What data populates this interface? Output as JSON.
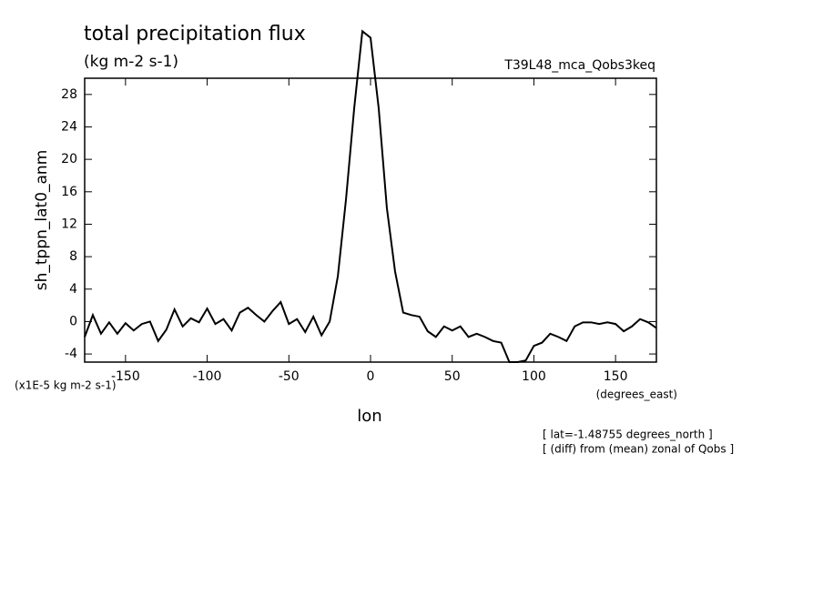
{
  "chart_data": {
    "type": "line",
    "title": "total precipitation flux",
    "subtitle": "(kg m-2 s-1)",
    "annotation_top_right": "T39L48_mca_Qobs3keq",
    "ylabel": "sh_tppn_lat0_anm",
    "yunits": "(x1E-5 kg m-2 s-1)",
    "xlabel": "lon",
    "xunits": "(degrees_east)",
    "notes": [
      "[ lat=-1.48755 degrees_north ]",
      "[ (diff) from (mean) zonal of Qobs ]"
    ],
    "x": [
      -175,
      -170,
      -165,
      -160,
      -155,
      -150,
      -145,
      -140,
      -135,
      -130,
      -125,
      -120,
      -115,
      -110,
      -105,
      -100,
      -95,
      -90,
      -85,
      -80,
      -75,
      -70,
      -65,
      -60,
      -55,
      -50,
      -45,
      -40,
      -35,
      -30,
      -25,
      -20,
      -15,
      -10,
      -5,
      0,
      5,
      10,
      15,
      20,
      25,
      30,
      35,
      40,
      45,
      50,
      55,
      60,
      65,
      70,
      75,
      80,
      85,
      90,
      95,
      100,
      105,
      110,
      115,
      120,
      125,
      130,
      135,
      140,
      145,
      150,
      155,
      160,
      165,
      170,
      175
    ],
    "series": [
      {
        "name": "sh_tppn_lat0_anm",
        "color": "#000000",
        "values": [
          -1.9,
          0.8,
          -1.5,
          -0.1,
          -1.5,
          -0.2,
          -1.1,
          -0.3,
          0,
          -2.4,
          -1,
          1.5,
          -0.6,
          0.4,
          -0.1,
          1.6,
          -0.3,
          0.3,
          -1.1,
          1.1,
          1.7,
          0.8,
          0,
          1.3,
          2.4,
          -0.3,
          0.3,
          -1.3,
          0.6,
          -1.7,
          0,
          5.6,
          15.1,
          26.3,
          35.8,
          35,
          26.3,
          14,
          6.2,
          1.1,
          0.8,
          0.6,
          -1.2,
          -1.9,
          -0.6,
          -1.1,
          -0.6,
          -1.9,
          -1.5,
          -1.9,
          -2.4,
          -2.6,
          -5,
          -5,
          -4.8,
          -3,
          -2.6,
          -1.5,
          -1.9,
          -2.4,
          -0.6,
          -0.1,
          -0.1,
          -0.3,
          -0.1,
          -0.3,
          -1.2,
          -0.6,
          0.3,
          -0.1,
          -0.8
        ]
      }
    ],
    "xlim": [
      -175,
      175
    ],
    "xticks": [
      -150,
      -100,
      -50,
      0,
      50,
      100,
      150
    ],
    "ylim": [
      -5,
      30
    ],
    "yticks": [
      -4,
      0,
      4,
      8,
      12,
      16,
      20,
      24,
      28
    ]
  }
}
